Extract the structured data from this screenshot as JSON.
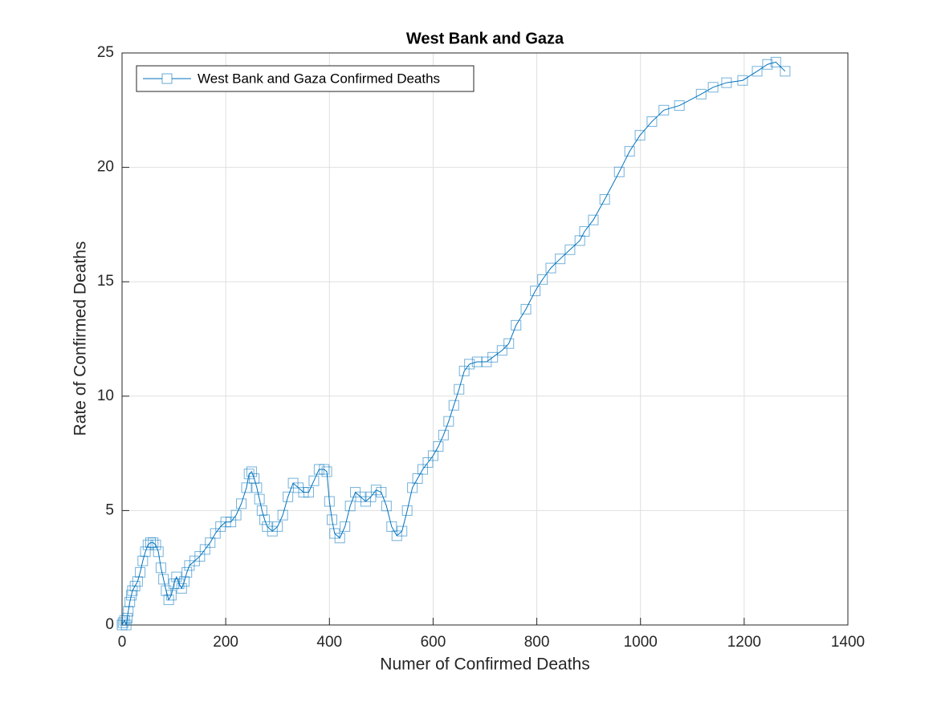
{
  "chart_data": {
    "type": "line",
    "title": "West Bank and Gaza",
    "x_label": "Numer of Confirmed Deaths",
    "y_label": "Rate of Confirmed Deaths",
    "xlim": [
      0,
      1400
    ],
    "ylim": [
      0,
      25
    ],
    "xticks": [
      0,
      200,
      400,
      600,
      800,
      1000,
      1200,
      1400
    ],
    "yticks": [
      0,
      5,
      10,
      15,
      20,
      25
    ],
    "grid": true,
    "legend_position": "upper-left",
    "series": [
      {
        "name": "West Bank and Gaza Confirmed Deaths",
        "color": "#0072bd",
        "x": [
          0,
          2,
          5,
          8,
          10,
          12,
          15,
          18,
          20,
          25,
          30,
          35,
          40,
          45,
          50,
          55,
          60,
          65,
          70,
          75,
          80,
          85,
          90,
          95,
          100,
          105,
          110,
          115,
          120,
          125,
          130,
          140,
          150,
          160,
          170,
          180,
          190,
          200,
          210,
          220,
          230,
          240,
          245,
          250,
          255,
          260,
          265,
          270,
          275,
          280,
          290,
          300,
          310,
          320,
          330,
          340,
          350,
          360,
          370,
          380,
          390,
          395,
          400,
          405,
          410,
          420,
          430,
          440,
          450,
          460,
          470,
          480,
          490,
          500,
          510,
          520,
          530,
          540,
          550,
          560,
          570,
          580,
          590,
          600,
          610,
          620,
          630,
          640,
          650,
          660,
          670,
          685,
          703,
          715,
          733,
          746,
          760,
          779,
          797,
          811,
          827,
          845,
          864,
          883,
          892,
          909,
          931,
          959,
          979,
          999,
          1022,
          1045,
          1075,
          1117,
          1140,
          1166,
          1197,
          1225,
          1245,
          1261,
          1279
        ],
        "values": [
          0,
          0.1,
          0.2,
          0,
          0.3,
          0.6,
          1.0,
          1.3,
          1.5,
          1.7,
          1.9,
          2.3,
          2.8,
          3.2,
          3.5,
          3.6,
          3.6,
          3.5,
          3.2,
          2.5,
          2.0,
          1.5,
          1.1,
          1.3,
          1.8,
          2.1,
          1.8,
          1.6,
          1.9,
          2.3,
          2.6,
          2.8,
          3.0,
          3.3,
          3.6,
          4.0,
          4.3,
          4.5,
          4.5,
          4.8,
          5.3,
          6.0,
          6.6,
          6.7,
          6.4,
          6.0,
          5.5,
          5.0,
          4.6,
          4.3,
          4.1,
          4.3,
          4.8,
          5.6,
          6.2,
          6.0,
          5.8,
          5.8,
          6.3,
          6.8,
          6.8,
          6.7,
          5.4,
          4.6,
          4.0,
          3.8,
          4.3,
          5.2,
          5.8,
          5.6,
          5.4,
          5.6,
          5.9,
          5.8,
          5.2,
          4.3,
          3.9,
          4.1,
          5.0,
          6.0,
          6.4,
          6.8,
          7.1,
          7.4,
          7.8,
          8.3,
          8.9,
          9.6,
          10.3,
          11.1,
          11.4,
          11.5,
          11.5,
          11.7,
          12.0,
          12.3,
          13.1,
          13.8,
          14.6,
          15.1,
          15.6,
          16.0,
          16.4,
          16.8,
          17.2,
          17.7,
          18.6,
          19.8,
          20.7,
          21.4,
          22.0,
          22.5,
          22.7,
          23.2,
          23.5,
          23.7,
          23.8,
          24.2,
          24.5,
          24.6,
          24.2
        ]
      }
    ]
  }
}
